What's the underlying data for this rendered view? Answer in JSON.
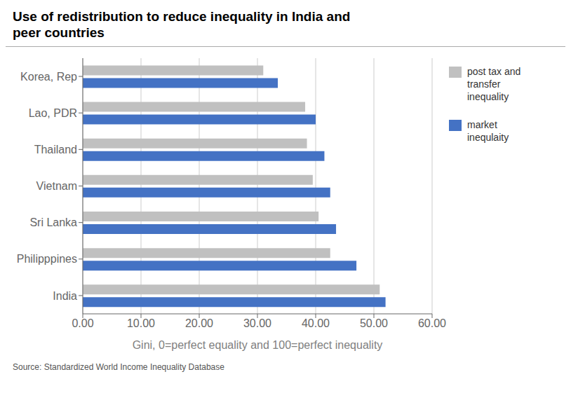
{
  "chart_data": {
    "type": "bar",
    "orientation": "horizontal",
    "title": "Use of redistribution to reduce inequality in India and\npeer countries",
    "xlabel": "Gini, 0=perfect equality and 100=perfect inequality",
    "source": "Source: Standardized World Income Inequality Database",
    "categories": [
      "India",
      "Philipppines",
      "Sri Lanka",
      "Vietnam",
      "Thailand",
      "Lao, PDR",
      "Korea, Rep"
    ],
    "series": [
      {
        "name": "post tax and\ntransfer\ninequality",
        "color": "#c0c0c0",
        "values": [
          51.0,
          42.5,
          40.5,
          39.5,
          38.5,
          38.2,
          31.0
        ]
      },
      {
        "name": "market\ninequlaity",
        "color": "#4472c4",
        "values": [
          52.0,
          47.0,
          43.5,
          42.5,
          41.5,
          40.0,
          33.5
        ]
      }
    ],
    "xlim": [
      0,
      60
    ],
    "xticks": [
      {
        "value": 0,
        "label": "0.00"
      },
      {
        "value": 10,
        "label": "10.00"
      },
      {
        "value": 20,
        "label": "20.00"
      },
      {
        "value": 30,
        "label": "30.00"
      },
      {
        "value": 40,
        "label": "40.00"
      },
      {
        "value": 50,
        "label": "50.00"
      },
      {
        "value": 60,
        "label": "60.00"
      }
    ],
    "grid": true,
    "legend": "right"
  }
}
